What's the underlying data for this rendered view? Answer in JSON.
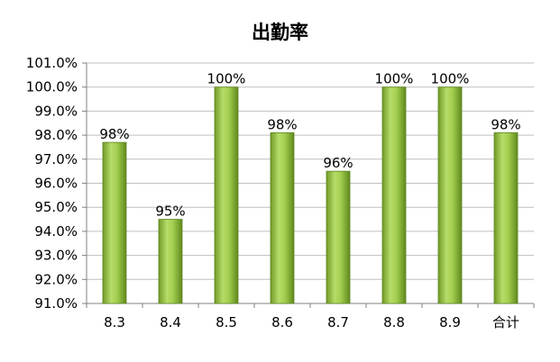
{
  "chart_data": {
    "type": "bar",
    "title": "出勤率",
    "categories": [
      "8.3",
      "8.4",
      "8.5",
      "8.6",
      "8.7",
      "8.8",
      "8.9",
      "合计"
    ],
    "values": [
      97.7,
      94.5,
      100.0,
      98.1,
      96.5,
      100.0,
      100.0,
      98.1
    ],
    "data_labels": [
      "98%",
      "95%",
      "100%",
      "98%",
      "96%",
      "100%",
      "100%",
      "98%"
    ],
    "y_ticks": [
      "91.0%",
      "92.0%",
      "93.0%",
      "94.0%",
      "95.0%",
      "96.0%",
      "97.0%",
      "98.0%",
      "99.0%",
      "100.0%",
      "101.0%"
    ],
    "ylim": [
      91,
      101
    ],
    "xlabel": "",
    "ylabel": "",
    "grid": true,
    "legend": "none",
    "bar_color": "#8cbf3a"
  }
}
